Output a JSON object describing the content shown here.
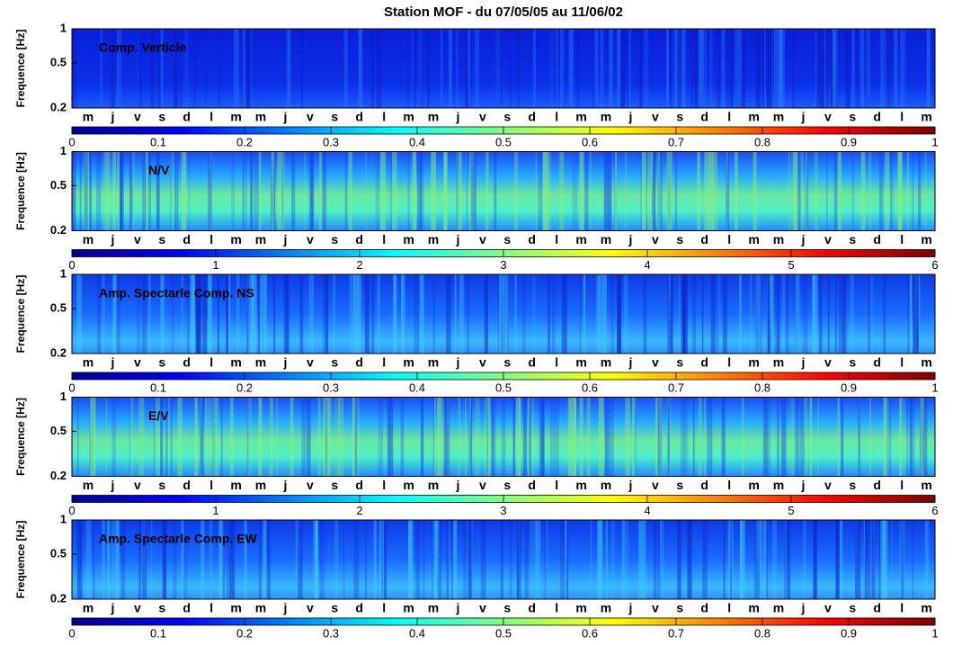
{
  "chart_data": {
    "title": "Station MOF - du 07/05/05 au 11/06/02",
    "panels": [
      {
        "type": "heatmap",
        "label": "Comp. Verticle",
        "ylabel": "Frequence [Hz]",
        "yscale": "log",
        "ylim": [
          0.2,
          1
        ],
        "yticks": [
          1,
          0.5,
          0.2
        ],
        "colormap": "jet",
        "categories": [
          "m",
          "j",
          "v",
          "s",
          "d",
          "l",
          "m",
          "m",
          "j",
          "v",
          "s",
          "d",
          "l",
          "m",
          "m",
          "j",
          "v",
          "s",
          "d",
          "l",
          "m",
          "m",
          "j",
          "v",
          "s",
          "d",
          "l",
          "m",
          "m",
          "j",
          "v",
          "s",
          "d",
          "l",
          "m"
        ],
        "clim": [
          0,
          1
        ],
        "cticks": [
          0,
          0.1,
          0.2,
          0.3,
          0.4,
          0.5,
          0.6,
          0.7,
          0.8,
          0.9,
          1
        ]
      },
      {
        "type": "heatmap",
        "label": "N/V",
        "ylabel": "Frequence [Hz]",
        "yscale": "log",
        "ylim": [
          0.2,
          1
        ],
        "yticks": [
          1,
          0.5,
          0.2
        ],
        "colormap": "jet",
        "categories": [
          "m",
          "j",
          "v",
          "s",
          "d",
          "l",
          "m",
          "m",
          "j",
          "v",
          "s",
          "d",
          "l",
          "m",
          "m",
          "j",
          "v",
          "s",
          "d",
          "l",
          "m",
          "m",
          "j",
          "v",
          "s",
          "d",
          "l",
          "m",
          "m",
          "j",
          "v",
          "s",
          "d",
          "l",
          "m"
        ],
        "clim": [
          0,
          6
        ],
        "cticks": [
          0,
          1,
          2,
          3,
          4,
          5,
          6
        ]
      },
      {
        "type": "heatmap",
        "label": "Amp. Spectarle Comp. NS",
        "ylabel": "Frequence [Hz]",
        "yscale": "log",
        "ylim": [
          0.2,
          1
        ],
        "yticks": [
          1,
          0.5,
          0.2
        ],
        "colormap": "jet",
        "categories": [
          "m",
          "j",
          "v",
          "s",
          "d",
          "l",
          "m",
          "m",
          "j",
          "v",
          "s",
          "d",
          "l",
          "m",
          "m",
          "j",
          "v",
          "s",
          "d",
          "l",
          "m",
          "m",
          "j",
          "v",
          "s",
          "d",
          "l",
          "m",
          "m",
          "j",
          "v",
          "s",
          "d",
          "l",
          "m"
        ],
        "clim": [
          0,
          1
        ],
        "cticks": [
          0,
          0.1,
          0.2,
          0.3,
          0.4,
          0.5,
          0.6,
          0.7,
          0.8,
          0.9,
          1
        ]
      },
      {
        "type": "heatmap",
        "label": "E/V",
        "ylabel": "Frequence [Hz]",
        "yscale": "log",
        "ylim": [
          0.2,
          1
        ],
        "yticks": [
          1,
          0.5,
          0.2
        ],
        "colormap": "jet",
        "categories": [
          "m",
          "j",
          "v",
          "s",
          "d",
          "l",
          "m",
          "m",
          "j",
          "v",
          "s",
          "d",
          "l",
          "m",
          "m",
          "j",
          "v",
          "s",
          "d",
          "l",
          "m",
          "m",
          "j",
          "v",
          "s",
          "d",
          "l",
          "m",
          "m",
          "j",
          "v",
          "s",
          "d",
          "l",
          "m"
        ],
        "clim": [
          0,
          6
        ],
        "cticks": [
          0,
          1,
          2,
          3,
          4,
          5,
          6
        ]
      },
      {
        "type": "heatmap",
        "label": "Amp. Spectarle Comp. EW",
        "ylabel": "Frequence [Hz]",
        "yscale": "log",
        "ylim": [
          0.2,
          1
        ],
        "yticks": [
          1,
          0.5,
          0.2
        ],
        "colormap": "jet",
        "categories": [
          "m",
          "j",
          "v",
          "s",
          "d",
          "l",
          "m",
          "m",
          "j",
          "v",
          "s",
          "d",
          "l",
          "m",
          "m",
          "j",
          "v",
          "s",
          "d",
          "l",
          "m",
          "m",
          "j",
          "v",
          "s",
          "d",
          "l",
          "m",
          "m",
          "j",
          "v",
          "s",
          "d",
          "l",
          "m"
        ],
        "clim": [
          0,
          1
        ],
        "cticks": [
          0,
          0.1,
          0.2,
          0.3,
          0.4,
          0.5,
          0.6,
          0.7,
          0.8,
          0.9,
          1
        ]
      }
    ]
  }
}
